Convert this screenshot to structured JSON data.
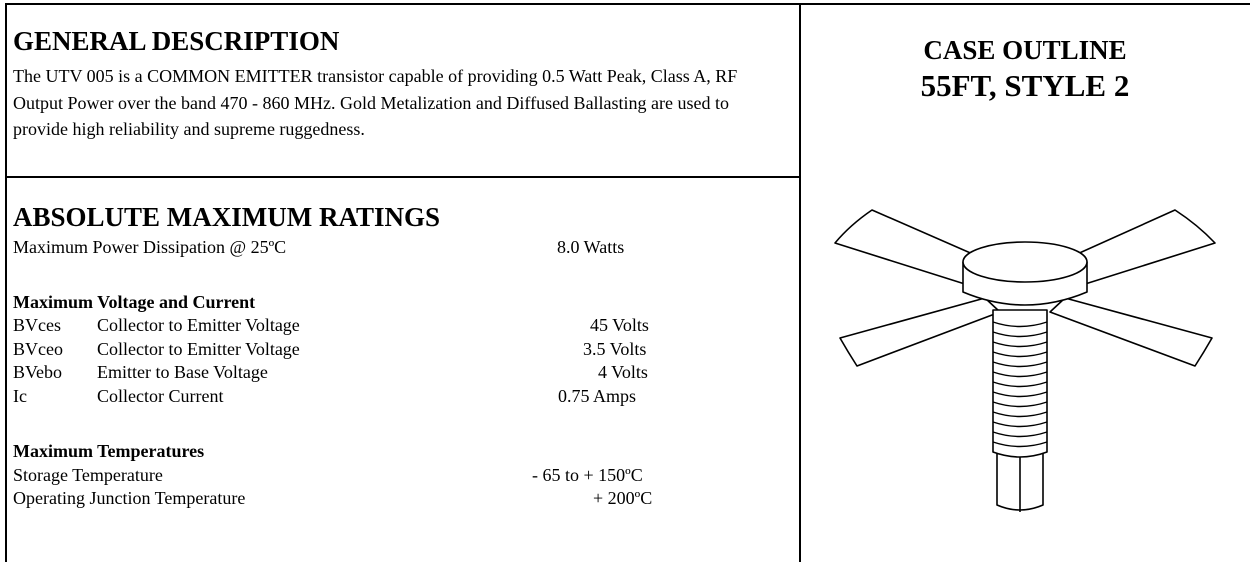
{
  "general_description": {
    "title": "GENERAL DESCRIPTION",
    "text": "The UTV 005 is a COMMON EMITTER transistor capable of providing 0.5 Watt Peak, Class A, RF Output Power over the band 470 - 860 MHz. Gold Metalization and Diffused Ballasting are used to provide high reliability and supreme ruggedness."
  },
  "absolute_maximum_ratings": {
    "title": "ABSOLUTE MAXIMUM RATINGS",
    "power": {
      "label": "Maximum Power Dissipation @ 25ºC",
      "value": "8.0 Watts"
    },
    "voltage_current": {
      "title": "Maximum Voltage and Current",
      "rows": [
        {
          "symbol": "BVces",
          "label": "Collector to Emitter Voltage",
          "value": "45 Volts"
        },
        {
          "symbol": "BVceo",
          "label": "Collector to Emitter Voltage",
          "value": "3.5 Volts"
        },
        {
          "symbol": "BVebo",
          "label": "Emitter to Base Voltage",
          "value": "4 Volts"
        },
        {
          "symbol": "Ic",
          "label": "Collector Current",
          "value": "0.75 Amps"
        }
      ]
    },
    "temperatures": {
      "title": "Maximum Temperatures",
      "rows": [
        {
          "label": "Storage Temperature",
          "value": "- 65 to + 150ºC"
        },
        {
          "label": "Operating Junction Temperature",
          "value": "+ 200ºC"
        }
      ]
    }
  },
  "case_outline": {
    "title": "CASE OUTLINE",
    "subtitle": "55FT, STYLE 2"
  }
}
